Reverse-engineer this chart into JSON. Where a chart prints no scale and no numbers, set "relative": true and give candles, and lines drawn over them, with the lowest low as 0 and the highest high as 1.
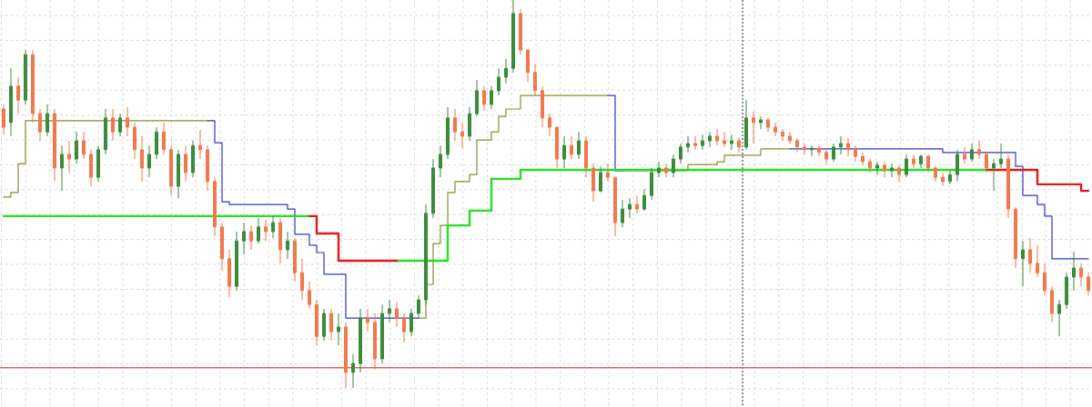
{
  "chart_data": {
    "type": "candlestick",
    "relative": true,
    "grid": true,
    "categories": [
      null,
      null,
      null,
      null,
      null,
      null,
      null,
      null,
      null,
      null,
      null,
      null,
      null,
      null,
      null,
      null,
      null,
      null,
      null,
      null,
      null,
      null,
      null,
      null,
      null,
      null,
      null,
      null,
      null,
      null,
      null,
      null,
      null,
      null,
      null,
      null,
      null,
      null,
      null,
      null,
      null,
      null,
      null,
      null,
      null,
      null,
      null,
      null,
      null,
      null,
      null,
      null,
      null,
      null,
      null,
      null,
      null,
      null,
      null,
      null,
      null,
      null,
      null,
      null,
      null,
      null,
      null,
      null,
      null,
      null,
      null,
      null,
      null,
      null,
      null,
      null,
      null,
      null,
      null,
      null,
      null,
      null,
      null,
      null,
      null,
      null,
      null,
      null,
      null,
      null,
      null,
      null,
      null,
      null,
      null,
      null,
      null,
      null,
      null,
      null,
      null,
      null,
      null,
      null,
      null,
      null,
      null,
      null,
      null,
      null,
      null,
      null,
      null,
      null,
      null,
      null,
      null,
      null,
      null,
      null,
      null,
      null,
      null,
      null,
      null,
      null,
      null,
      null,
      null,
      null,
      null,
      null,
      null,
      null,
      null,
      null,
      null,
      null,
      null,
      null,
      null,
      null,
      null,
      null,
      null,
      null,
      null,
      null,
      null,
      null
    ],
    "ohlc": [
      [
        0.719,
        0.731,
        0.653,
        0.672
      ],
      [
        0.684,
        0.824,
        0.649,
        0.778
      ],
      [
        0.778,
        0.801,
        0.707,
        0.742
      ],
      [
        0.742,
        0.871,
        0.731,
        0.859
      ],
      [
        0.859,
        0.871,
        0.684,
        0.707
      ],
      [
        0.707,
        0.719,
        0.637,
        0.66
      ],
      [
        0.66,
        0.731,
        0.649,
        0.707
      ],
      [
        0.707,
        0.719,
        0.532,
        0.567
      ],
      [
        0.567,
        0.625,
        0.508,
        0.602
      ],
      [
        0.602,
        0.637,
        0.555,
        0.59
      ],
      [
        0.59,
        0.66,
        0.578,
        0.637
      ],
      [
        0.637,
        0.66,
        0.59,
        0.602
      ],
      [
        0.602,
        0.614,
        0.52,
        0.543
      ],
      [
        0.543,
        0.625,
        0.532,
        0.614
      ],
      [
        0.614,
        0.719,
        0.602,
        0.696
      ],
      [
        0.696,
        0.719,
        0.637,
        0.66
      ],
      [
        0.66,
        0.707,
        0.649,
        0.696
      ],
      [
        0.696,
        0.724,
        0.649,
        0.672
      ],
      [
        0.672,
        0.684,
        0.59,
        0.614
      ],
      [
        0.614,
        0.649,
        0.532,
        0.567
      ],
      [
        0.567,
        0.625,
        0.543,
        0.602
      ],
      [
        0.602,
        0.672,
        0.59,
        0.66
      ],
      [
        0.66,
        0.684,
        0.602,
        0.614
      ],
      [
        0.614,
        0.625,
        0.496,
        0.52
      ],
      [
        0.52,
        0.614,
        0.489,
        0.602
      ],
      [
        0.602,
        0.625,
        0.532,
        0.555
      ],
      [
        0.555,
        0.637,
        0.543,
        0.625
      ],
      [
        0.625,
        0.665,
        0.59,
        0.614
      ],
      [
        0.614,
        0.625,
        0.508,
        0.532
      ],
      [
        0.532,
        0.543,
        0.391,
        0.415
      ],
      [
        0.415,
        0.426,
        0.302,
        0.333
      ],
      [
        0.333,
        0.356,
        0.234,
        0.262
      ],
      [
        0.262,
        0.403,
        0.251,
        0.379
      ],
      [
        0.379,
        0.426,
        0.344,
        0.403
      ],
      [
        0.403,
        0.419,
        0.356,
        0.379
      ],
      [
        0.379,
        0.438,
        0.372,
        0.415
      ],
      [
        0.415,
        0.433,
        0.379,
        0.403
      ],
      [
        0.403,
        0.443,
        0.386,
        0.426
      ],
      [
        0.426,
        0.438,
        0.321,
        0.356
      ],
      [
        0.356,
        0.403,
        0.333,
        0.379
      ],
      [
        0.379,
        0.386,
        0.274,
        0.297
      ],
      [
        0.297,
        0.333,
        0.227,
        0.251
      ],
      [
        0.251,
        0.274,
        0.204,
        0.215
      ],
      [
        0.215,
        0.227,
        0.11,
        0.133
      ],
      [
        0.133,
        0.204,
        0.122,
        0.192
      ],
      [
        0.192,
        0.204,
        0.122,
        0.145
      ],
      [
        0.145,
        0.192,
        0.11,
        0.157
      ],
      [
        0.157,
        0.169,
        0.0,
        0.04
      ],
      [
        0.04,
        0.087,
        0.0,
        0.063
      ],
      [
        0.063,
        0.204,
        0.04,
        0.18
      ],
      [
        0.18,
        0.204,
        0.145,
        0.169
      ],
      [
        0.169,
        0.192,
        0.047,
        0.075
      ],
      [
        0.075,
        0.215,
        0.063,
        0.192
      ],
      [
        0.192,
        0.227,
        0.169,
        0.204
      ],
      [
        0.204,
        0.222,
        0.157,
        0.18
      ],
      [
        0.18,
        0.192,
        0.117,
        0.145
      ],
      [
        0.145,
        0.204,
        0.133,
        0.192
      ],
      [
        0.192,
        0.239,
        0.18,
        0.227
      ],
      [
        0.227,
        0.473,
        0.215,
        0.45
      ],
      [
        0.45,
        0.59,
        0.438,
        0.567
      ],
      [
        0.567,
        0.625,
        0.543,
        0.602
      ],
      [
        0.602,
        0.724,
        0.59,
        0.696
      ],
      [
        0.696,
        0.719,
        0.637,
        0.66
      ],
      [
        0.66,
        0.684,
        0.618,
        0.649
      ],
      [
        0.649,
        0.724,
        0.637,
        0.707
      ],
      [
        0.707,
        0.794,
        0.7,
        0.766
      ],
      [
        0.766,
        0.778,
        0.714,
        0.731
      ],
      [
        0.731,
        0.778,
        0.719,
        0.766
      ],
      [
        0.766,
        0.824,
        0.754,
        0.801
      ],
      [
        0.801,
        0.848,
        0.785,
        0.824
      ],
      [
        0.824,
        1.0,
        0.813,
        0.965
      ],
      [
        0.965,
        0.977,
        0.859,
        0.871
      ],
      [
        0.871,
        0.871,
        0.789,
        0.813
      ],
      [
        0.813,
        0.836,
        0.754,
        0.766
      ],
      [
        0.766,
        0.778,
        0.672,
        0.696
      ],
      [
        0.696,
        0.707,
        0.649,
        0.672
      ],
      [
        0.672,
        0.672,
        0.567,
        0.59
      ],
      [
        0.59,
        0.649,
        0.567,
        0.625
      ],
      [
        0.625,
        0.649,
        0.59,
        0.602
      ],
      [
        0.602,
        0.66,
        0.59,
        0.637
      ],
      [
        0.637,
        0.649,
        0.543,
        0.567
      ],
      [
        0.567,
        0.578,
        0.48,
        0.508
      ],
      [
        0.508,
        0.571,
        0.504,
        0.555
      ],
      [
        0.555,
        0.578,
        0.532,
        0.543
      ],
      [
        0.543,
        0.543,
        0.391,
        0.426
      ],
      [
        0.426,
        0.485,
        0.415,
        0.461
      ],
      [
        0.461,
        0.489,
        0.438,
        0.473
      ],
      [
        0.473,
        0.496,
        0.45,
        0.461
      ],
      [
        0.461,
        0.513,
        0.457,
        0.496
      ],
      [
        0.496,
        0.567,
        0.485,
        0.555
      ],
      [
        0.555,
        0.583,
        0.543,
        0.567
      ],
      [
        0.567,
        0.578,
        0.543,
        0.555
      ],
      [
        0.555,
        0.602,
        0.543,
        0.59
      ],
      [
        0.59,
        0.63,
        0.578,
        0.621
      ],
      [
        0.621,
        0.649,
        0.607,
        0.63
      ],
      [
        0.63,
        0.649,
        0.614,
        0.625
      ],
      [
        0.625,
        0.653,
        0.614,
        0.637
      ],
      [
        0.637,
        0.66,
        0.621,
        0.649
      ],
      [
        0.649,
        0.667,
        0.625,
        0.637
      ],
      [
        0.637,
        0.66,
        0.621,
        0.63
      ],
      [
        0.63,
        0.653,
        0.614,
        0.637
      ],
      [
        0.637,
        0.644,
        0.607,
        0.621
      ],
      [
        0.621,
        0.742,
        0.614,
        0.696
      ],
      [
        0.696,
        0.712,
        0.63,
        0.684
      ],
      [
        0.684,
        0.7,
        0.667,
        0.691
      ],
      [
        0.691,
        0.696,
        0.66,
        0.672
      ],
      [
        0.672,
        0.684,
        0.649,
        0.66
      ],
      [
        0.66,
        0.667,
        0.637,
        0.649
      ],
      [
        0.649,
        0.66,
        0.63,
        0.637
      ],
      [
        0.637,
        0.644,
        0.607,
        0.621
      ],
      [
        0.621,
        0.63,
        0.602,
        0.614
      ],
      [
        0.614,
        0.625,
        0.597,
        0.618
      ],
      [
        0.618,
        0.625,
        0.597,
        0.607
      ],
      [
        0.607,
        0.614,
        0.578,
        0.59
      ],
      [
        0.59,
        0.63,
        0.583,
        0.621
      ],
      [
        0.621,
        0.649,
        0.602,
        0.63
      ],
      [
        0.63,
        0.644,
        0.597,
        0.614
      ],
      [
        0.614,
        0.625,
        0.583,
        0.597
      ],
      [
        0.597,
        0.607,
        0.574,
        0.583
      ],
      [
        0.583,
        0.59,
        0.555,
        0.567
      ],
      [
        0.567,
        0.583,
        0.55,
        0.574
      ],
      [
        0.574,
        0.583,
        0.543,
        0.56
      ],
      [
        0.56,
        0.578,
        0.543,
        0.567
      ],
      [
        0.567,
        0.574,
        0.532,
        0.55
      ],
      [
        0.55,
        0.602,
        0.543,
        0.59
      ],
      [
        0.59,
        0.602,
        0.567,
        0.578
      ],
      [
        0.578,
        0.602,
        0.567,
        0.597
      ],
      [
        0.597,
        0.602,
        0.555,
        0.567
      ],
      [
        0.567,
        0.571,
        0.532,
        0.543
      ],
      [
        0.543,
        0.555,
        0.52,
        0.532
      ],
      [
        0.532,
        0.56,
        0.525,
        0.55
      ],
      [
        0.55,
        0.614,
        0.532,
        0.602
      ],
      [
        0.602,
        0.621,
        0.578,
        0.59
      ],
      [
        0.59,
        0.63,
        0.583,
        0.614
      ],
      [
        0.614,
        0.637,
        0.59,
        0.602
      ],
      [
        0.602,
        0.607,
        0.555,
        0.567
      ],
      [
        0.567,
        0.59,
        0.508,
        0.578
      ],
      [
        0.578,
        0.63,
        0.567,
        0.59
      ],
      [
        0.59,
        0.602,
        0.438,
        0.461
      ],
      [
        0.461,
        0.466,
        0.309,
        0.333
      ],
      [
        0.333,
        0.379,
        0.262,
        0.356
      ],
      [
        0.356,
        0.386,
        0.297,
        0.321
      ],
      [
        0.321,
        0.368,
        0.286,
        0.297
      ],
      [
        0.297,
        0.321,
        0.239,
        0.251
      ],
      [
        0.251,
        0.262,
        0.169,
        0.192
      ],
      [
        0.192,
        0.227,
        0.133,
        0.215
      ],
      [
        0.215,
        0.297,
        0.204,
        0.286
      ],
      [
        0.286,
        0.351,
        0.251,
        0.309
      ],
      [
        0.309,
        0.321,
        0.262,
        0.286
      ],
      [
        0.286,
        0.297,
        0.239,
        0.251
      ]
    ],
    "colors": [
      "#f0784a",
      "#3a8a3a",
      "#f0784a",
      "#3a8a3a",
      "#f0784a",
      "#f0784a",
      "#3a8a3a",
      "#f0784a",
      "#3a8a3a",
      "#f0784a",
      "#3a8a3a",
      "#f0784a",
      "#f0784a",
      "#3a8a3a",
      "#3a8a3a",
      "#f0784a",
      "#3a8a3a",
      "#f0784a",
      "#f0784a",
      "#f0784a",
      "#3a8a3a",
      "#3a8a3a",
      "#f0784a",
      "#f0784a",
      "#3a8a3a",
      "#f0784a",
      "#3a8a3a",
      "#f0784a",
      "#f0784a",
      "#f0784a",
      "#f0784a",
      "#f0784a",
      "#3a8a3a",
      "#3a8a3a",
      "#f0784a",
      "#3a8a3a",
      "#f0784a",
      "#3a8a3a",
      "#f0784a",
      "#3a8a3a",
      "#f0784a",
      "#f0784a",
      "#f0784a",
      "#f0784a",
      "#3a8a3a",
      "#f0784a",
      "#3a8a3a",
      "#f0784a",
      "#3a8a3a",
      "#3a8a3a",
      "#f0784a",
      "#f0784a",
      "#3a8a3a",
      "#3a8a3a",
      "#f0784a",
      "#f0784a",
      "#3a8a3a",
      "#3a8a3a",
      "#3a8a3a",
      "#3a8a3a",
      "#3a8a3a",
      "#3a8a3a",
      "#f0784a",
      "#f0784a",
      "#3a8a3a",
      "#3a8a3a",
      "#f0784a",
      "#3a8a3a",
      "#3a8a3a",
      "#3a8a3a",
      "#3a8a3a",
      "#f0784a",
      "#f0784a",
      "#f0784a",
      "#f0784a",
      "#f0784a",
      "#f0784a",
      "#3a8a3a",
      "#f0784a",
      "#3a8a3a",
      "#f0784a",
      "#f0784a",
      "#3a8a3a",
      "#f0784a",
      "#f0784a",
      "#3a8a3a",
      "#3a8a3a",
      "#f0784a",
      "#3a8a3a",
      "#3a8a3a",
      "#3a8a3a",
      "#f0784a",
      "#3a8a3a",
      "#3a8a3a",
      "#3a8a3a",
      "#f0784a",
      "#3a8a3a",
      "#3a8a3a",
      "#f0784a",
      "#f0784a",
      "#3a8a3a",
      "#f0784a",
      "#3a8a3a",
      "#f0784a",
      "#3a8a3a",
      "#f0784a",
      "#f0784a",
      "#f0784a",
      "#f0784a",
      "#f0784a",
      "#f0784a",
      "#3a8a3a",
      "#f0784a",
      "#f0784a",
      "#3a8a3a",
      "#3a8a3a",
      "#f0784a",
      "#f0784a",
      "#f0784a",
      "#f0784a",
      "#3a8a3a",
      "#f0784a",
      "#3a8a3a",
      "#f0784a",
      "#3a8a3a",
      "#f0784a",
      "#3a8a3a",
      "#f0784a",
      "#f0784a",
      "#f0784a",
      "#3a8a3a",
      "#3a8a3a",
      "#f0784a",
      "#3a8a3a",
      "#f0784a",
      "#f0784a",
      "#3a8a3a",
      "#3a8a3a",
      "#f0784a",
      "#f0784a",
      "#3a8a3a",
      "#f0784a",
      "#f0784a",
      "#f0784a",
      "#f0784a",
      "#3a8a3a",
      "#3a8a3a",
      "#3a8a3a",
      "#f0784a",
      "#f0784a"
    ],
    "series": [
      {
        "type": "step",
        "color": "#8c8c2e",
        "values": [
          0.492,
          0.504,
          0.578,
          0.689,
          0.689,
          0.689,
          0.689,
          0.689,
          0.689,
          0.689,
          0.689,
          0.689,
          0.689,
          0.689,
          0.689,
          0.689,
          0.689,
          0.689,
          0.689,
          0.689,
          0.689,
          0.689,
          0.689,
          0.689,
          0.689,
          0.689,
          0.689,
          0.689,
          0.689,
          null,
          null,
          null,
          null,
          null,
          null,
          null,
          null,
          null,
          null,
          null,
          null,
          null,
          null,
          null,
          null,
          null,
          null,
          null,
          null,
          null,
          null,
          null,
          null,
          null,
          null,
          null,
          null,
          0.18,
          0.267,
          0.372,
          0.419,
          0.504,
          0.532,
          0.532,
          0.55,
          0.639,
          0.639,
          0.66,
          0.7,
          0.719,
          0.719,
          0.754,
          0.754,
          0.754,
          0.754,
          0.754,
          0.754,
          0.754,
          0.754,
          0.754,
          0.754,
          0.754,
          0.754,
          0.754,
          null,
          0.56,
          0.56,
          0.56,
          0.56,
          0.56,
          0.56,
          0.56,
          0.56,
          0.56,
          0.576,
          0.576,
          0.576,
          0.576,
          0.583,
          0.6,
          0.6,
          0.6,
          0.6,
          0.6,
          0.616,
          0.616,
          0.616,
          0.616,
          0.616,
          null,
          null,
          null,
          null,
          null,
          null,
          null,
          null,
          null,
          null,
          null,
          null,
          null,
          null,
          null,
          null,
          null,
          null,
          null,
          null,
          null,
          null,
          null,
          null,
          null,
          null,
          null,
          null,
          null,
          null,
          null,
          null,
          null,
          null,
          null,
          null,
          null,
          null,
          null,
          null,
          null
        ]
      },
      {
        "type": "step",
        "color": "#3535c8",
        "values": [
          null,
          null,
          null,
          null,
          null,
          null,
          null,
          null,
          null,
          null,
          null,
          null,
          null,
          null,
          null,
          null,
          null,
          null,
          null,
          null,
          null,
          null,
          null,
          null,
          null,
          null,
          null,
          null,
          0.689,
          0.632,
          0.48,
          0.473,
          0.473,
          0.473,
          0.473,
          0.473,
          0.473,
          0.473,
          0.473,
          0.461,
          0.396,
          0.396,
          0.368,
          0.349,
          0.293,
          0.293,
          0.293,
          0.18,
          0.18,
          0.18,
          0.18,
          0.18,
          0.18,
          0.18,
          0.18,
          0.18,
          0.18,
          0.18,
          null,
          null,
          null,
          null,
          null,
          null,
          null,
          null,
          null,
          null,
          null,
          null,
          null,
          null,
          null,
          null,
          null,
          null,
          null,
          null,
          null,
          null,
          null,
          null,
          null,
          0.754,
          0.56,
          0.56,
          null,
          null,
          null,
          null,
          null,
          null,
          null,
          null,
          null,
          null,
          null,
          null,
          null,
          null,
          null,
          null,
          null,
          null,
          null,
          null,
          null,
          null,
          0.616,
          0.616,
          0.616,
          0.616,
          0.616,
          0.616,
          0.616,
          0.616,
          0.616,
          0.616,
          0.616,
          0.616,
          0.616,
          0.616,
          0.616,
          0.616,
          0.616,
          0.616,
          0.616,
          0.616,
          0.616,
          0.607,
          0.607,
          0.607,
          0.607,
          0.607,
          0.607,
          0.607,
          0.607,
          0.607,
          0.607,
          0.571,
          0.496,
          0.496,
          0.473,
          0.443,
          0.333,
          0.333,
          0.333,
          0.333,
          0.333,
          0.333
        ]
      },
      {
        "type": "step",
        "color": "#22e022",
        "values": [
          0.443,
          0.443,
          0.443,
          0.443,
          0.443,
          0.443,
          0.443,
          0.443,
          0.443,
          0.443,
          0.443,
          0.443,
          0.443,
          0.443,
          0.443,
          0.443,
          0.443,
          0.443,
          0.443,
          0.443,
          0.443,
          0.443,
          0.443,
          0.443,
          0.443,
          0.443,
          0.443,
          0.443,
          0.443,
          0.443,
          0.443,
          0.443,
          0.443,
          0.443,
          0.443,
          0.443,
          0.443,
          0.443,
          0.443,
          0.443,
          0.443,
          0.443,
          0.443,
          null,
          null,
          null,
          null,
          null,
          null,
          null,
          null,
          null,
          null,
          null,
          0.328,
          0.328,
          0.328,
          0.328,
          0.328,
          0.328,
          0.328,
          0.419,
          0.419,
          0.419,
          0.457,
          0.457,
          0.457,
          0.539,
          0.539,
          0.539,
          0.539,
          0.562,
          0.562,
          0.562,
          0.562,
          0.562,
          0.562,
          0.562,
          0.562,
          0.562,
          0.562,
          0.562,
          0.562,
          0.562,
          0.562,
          0.562,
          0.562,
          0.562,
          0.562,
          0.562,
          0.562,
          0.562,
          0.562,
          0.562,
          0.562,
          0.562,
          0.562,
          0.562,
          0.562,
          0.562,
          0.562,
          0.562,
          0.562,
          0.562,
          0.562,
          0.562,
          0.562,
          0.562,
          0.562,
          0.562,
          0.562,
          0.562,
          0.562,
          0.562,
          0.562,
          0.562,
          0.562,
          0.562,
          0.562,
          0.562,
          0.562,
          0.562,
          0.562,
          0.562,
          0.562,
          0.562,
          0.562,
          0.562,
          0.562,
          0.562,
          0.562,
          0.562,
          0.562,
          0.562,
          0.562,
          0.562,
          null,
          null,
          null,
          null,
          null,
          null,
          null,
          null,
          null,
          null,
          null,
          null,
          null,
          null
        ]
      },
      {
        "type": "step",
        "color": "#e01818",
        "values": [
          null,
          null,
          null,
          null,
          null,
          null,
          null,
          null,
          null,
          null,
          null,
          null,
          null,
          null,
          null,
          null,
          null,
          null,
          null,
          null,
          null,
          null,
          null,
          null,
          null,
          null,
          null,
          null,
          null,
          null,
          null,
          null,
          null,
          null,
          null,
          null,
          null,
          null,
          null,
          null,
          null,
          null,
          0.443,
          0.398,
          0.398,
          0.398,
          0.328,
          0.328,
          0.328,
          0.328,
          0.328,
          0.328,
          0.328,
          0.328,
          0.328,
          null,
          null,
          null,
          null,
          null,
          null,
          null,
          null,
          null,
          null,
          null,
          null,
          null,
          null,
          null,
          null,
          null,
          null,
          null,
          null,
          null,
          null,
          null,
          null,
          null,
          null,
          null,
          null,
          null,
          null,
          null,
          null,
          null,
          null,
          null,
          null,
          null,
          null,
          null,
          null,
          null,
          null,
          null,
          null,
          null,
          null,
          null,
          null,
          null,
          null,
          null,
          null,
          null,
          null,
          null,
          null,
          null,
          null,
          null,
          null,
          null,
          null,
          null,
          null,
          null,
          null,
          null,
          null,
          null,
          null,
          null,
          null,
          null,
          null,
          null,
          null,
          null,
          null,
          null,
          null,
          0.562,
          0.562,
          0.562,
          0.562,
          0.562,
          0.562,
          0.562,
          0.525,
          0.525,
          0.525,
          0.525,
          0.525,
          0.525,
          0.508,
          0.508
        ]
      }
    ],
    "ref_lines": [
      {
        "axis": "y",
        "value": 0.052,
        "color": "#e06464"
      }
    ]
  }
}
